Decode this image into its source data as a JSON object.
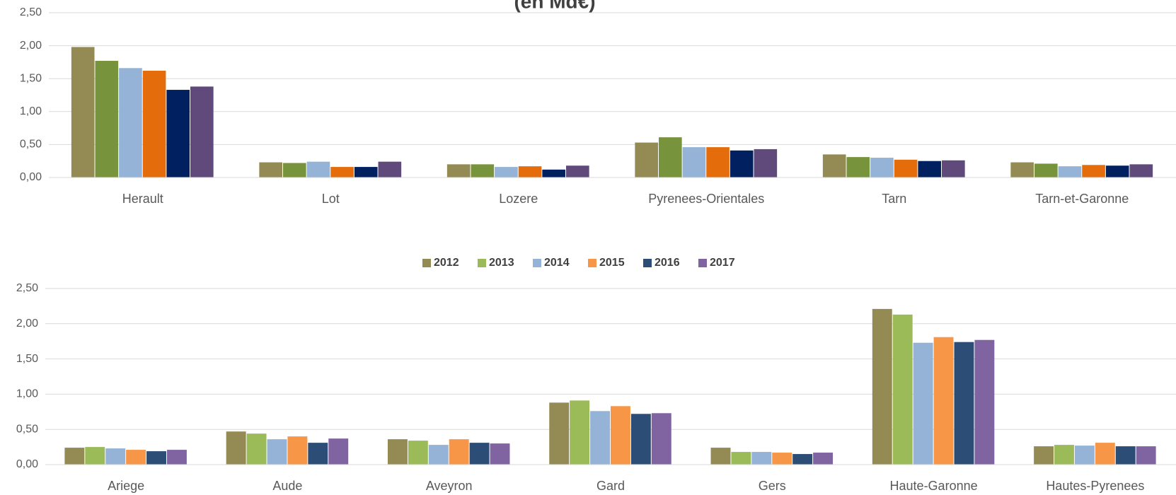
{
  "chart_data": [
    {
      "type": "bar",
      "title": "(en Md€)",
      "categories": [
        "Herault",
        "Lot",
        "Lozere",
        "Pyrenees-Orientales",
        "Tarn",
        "Tarn-et-Garonne"
      ],
      "series": [
        {
          "color": "#948a54",
          "values": [
            1.98,
            0.23,
            0.2,
            0.53,
            0.35,
            0.23
          ]
        },
        {
          "color": "#77933c",
          "values": [
            1.77,
            0.22,
            0.2,
            0.61,
            0.31,
            0.21
          ]
        },
        {
          "color": "#95b3d7",
          "values": [
            1.66,
            0.24,
            0.16,
            0.46,
            0.3,
            0.17
          ]
        },
        {
          "color": "#e46c0a",
          "values": [
            1.62,
            0.16,
            0.17,
            0.46,
            0.27,
            0.19
          ]
        },
        {
          "color": "#002060",
          "values": [
            1.33,
            0.16,
            0.12,
            0.41,
            0.25,
            0.18
          ]
        },
        {
          "color": "#604a7b",
          "values": [
            1.38,
            0.24,
            0.18,
            0.43,
            0.26,
            0.2
          ]
        }
      ],
      "ylim": [
        0,
        2.5
      ],
      "yticks": [
        {
          "value": 0,
          "label": "0,00"
        },
        {
          "value": 0.5,
          "label": "0,50"
        },
        {
          "value": 1,
          "label": "1,00"
        },
        {
          "value": 1.5,
          "label": "1,50"
        },
        {
          "value": 2,
          "label": "2,00"
        },
        {
          "value": 2.5,
          "label": "2,50"
        }
      ],
      "grid": true
    },
    {
      "type": "bar",
      "categories": [
        "Ariege",
        "Aude",
        "Aveyron",
        "Gard",
        "Gers",
        "Haute-Garonne",
        "Hautes-Pyrenees"
      ],
      "series": [
        {
          "name": "2012",
          "color": "#948a54",
          "values": [
            0.24,
            0.47,
            0.36,
            0.88,
            0.24,
            2.21,
            0.26
          ]
        },
        {
          "name": "2013",
          "color": "#9bbb59",
          "values": [
            0.25,
            0.44,
            0.34,
            0.91,
            0.18,
            2.13,
            0.28
          ]
        },
        {
          "name": "2014",
          "color": "#95b3d7",
          "values": [
            0.23,
            0.36,
            0.28,
            0.76,
            0.18,
            1.73,
            0.27
          ]
        },
        {
          "name": "2015",
          "color": "#f79646",
          "values": [
            0.21,
            0.4,
            0.36,
            0.83,
            0.17,
            1.81,
            0.31
          ]
        },
        {
          "name": "2016",
          "color": "#2c4d75",
          "values": [
            0.19,
            0.31,
            0.31,
            0.72,
            0.15,
            1.74,
            0.26
          ]
        },
        {
          "name": "2017",
          "color": "#8064a2",
          "values": [
            0.21,
            0.37,
            0.3,
            0.73,
            0.17,
            1.77,
            0.26
          ]
        }
      ],
      "ylim": [
        0,
        2.5
      ],
      "yticks": [
        {
          "value": 0,
          "label": "0,00"
        },
        {
          "value": 0.5,
          "label": "0,50"
        },
        {
          "value": 1,
          "label": "1,00"
        },
        {
          "value": 1.5,
          "label": "1,50"
        },
        {
          "value": 2,
          "label": "2,00"
        },
        {
          "value": 2.5,
          "label": "2,50"
        }
      ],
      "grid": true,
      "legend": "top"
    }
  ]
}
